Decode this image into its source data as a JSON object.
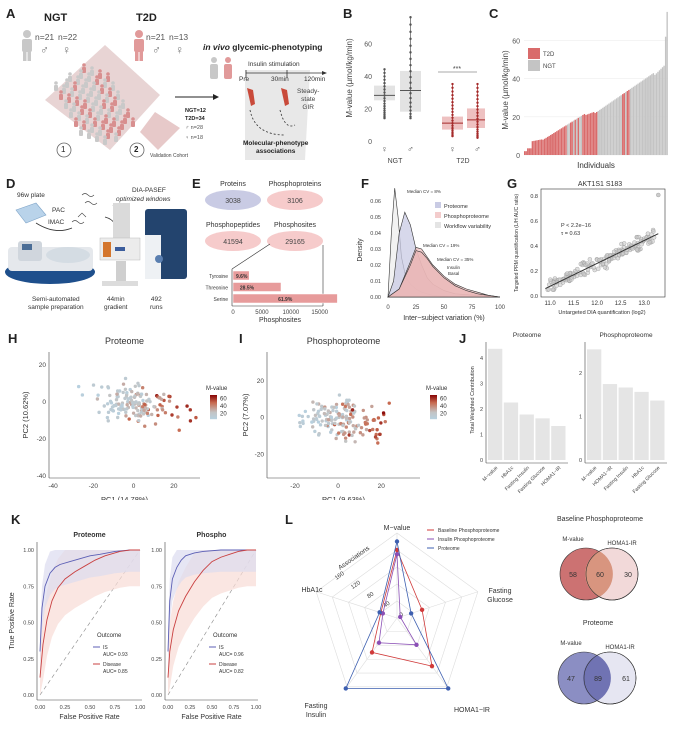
{
  "panels": {
    "A": {
      "letter": "A",
      "ngt": {
        "label": "NGT",
        "male_n": "n=21",
        "female_n": "n=22"
      },
      "t2d": {
        "label": "T2D",
        "male_n": "n=21",
        "female_n": "n=13"
      },
      "cohort1_label": "1",
      "cohort2_label": "2",
      "validation": {
        "ngt": "NGT=12",
        "t2d": "T2D=34",
        "male": "n=28",
        "female": "n=18",
        "label": "Validation Cohort"
      },
      "phenotyping_title_italic": "in vivo",
      "phenotyping_title": " glycemic-phenotyping",
      "insulin_stimulation": "Insulin stimulation",
      "timepoints": [
        "Pre",
        "30min",
        "120min"
      ],
      "steady_state": [
        "Steady-",
        "state",
        "GIR"
      ],
      "associations": [
        "Molecular-phenotype",
        "associations"
      ]
    },
    "B": {
      "letter": "B",
      "chart_data": {
        "type": "box",
        "ylabel": "M-value (µmol/kg/min)",
        "yticks": [
          0,
          20,
          40,
          60
        ],
        "ylim": [
          0,
          78
        ],
        "groups": [
          {
            "name": "NGT",
            "sex": "♀",
            "q1": 25,
            "median": 28,
            "q3": 34,
            "min": 14,
            "max": 44,
            "color": "#cccccc"
          },
          {
            "name": "NGT",
            "sex": "♂",
            "q1": 18,
            "median": 31,
            "q3": 43,
            "min": 14,
            "max": 76,
            "color": "#cccccc"
          },
          {
            "name": "T2D",
            "sex": "♀",
            "q1": 7,
            "median": 11,
            "q3": 15,
            "min": 3,
            "max": 35,
            "color": "#e7a7a7"
          },
          {
            "name": "T2D",
            "sex": "♂",
            "q1": 8,
            "median": 13,
            "q3": 20,
            "min": 2,
            "max": 35,
            "color": "#e7a7a7"
          }
        ],
        "group_labels": [
          "NGT",
          "T2D"
        ],
        "significance": "***"
      }
    },
    "C": {
      "letter": "C",
      "chart_data": {
        "type": "bar",
        "xlabel": "Individuals",
        "ylabel": "M-value (µmol/kg/min)",
        "yticks": [
          0,
          20,
          40,
          60
        ],
        "ylim": [
          0,
          76
        ],
        "legend": [
          {
            "name": "T2D",
            "color": "#d96b6b"
          },
          {
            "name": "NGT",
            "color": "#c4c4c4"
          }
        ],
        "note": "Individual M-values sorted ascending, colored by group"
      }
    },
    "D": {
      "letter": "D",
      "plate": "96w plate",
      "pac": "PAC",
      "imac": "IMAC",
      "dia_title": "DIA-PASEF",
      "dia_sub": "optimized windows",
      "semi": [
        "Semi-automated",
        "sample preparation"
      ],
      "gradient": [
        "44min",
        "gradient"
      ],
      "runs": [
        "492",
        "runs"
      ]
    },
    "E": {
      "letter": "E",
      "ellipses": [
        {
          "label": "Proteins",
          "value": "3038",
          "color": "#c9cbe4"
        },
        {
          "label": "Phosphoproteins",
          "value": "3106",
          "color": "#f6cbcb"
        },
        {
          "label": "Phosphopeptides",
          "value": "41594",
          "color": "#f6cbcb"
        },
        {
          "label": "Phosphosites",
          "value": "29165",
          "color": "#f6cbcb"
        }
      ],
      "chart_data": {
        "type": "bar",
        "orientation": "horizontal",
        "categories": [
          "Tyrosine",
          "Threonine",
          "Serine"
        ],
        "values": [
          2800,
          8300,
          18050
        ],
        "labels": [
          "9.6%",
          "28.5%",
          "61.9%"
        ],
        "xlabel": "Phosphosites",
        "xticks": [
          0,
          5000,
          10000,
          15000
        ],
        "xlim": [
          0,
          18500
        ]
      }
    },
    "F": {
      "letter": "F",
      "chart_data": {
        "type": "area",
        "xlabel": "Inter−subject variation (%)",
        "ylabel": "Density",
        "xticks": [
          0,
          25,
          50,
          75,
          100
        ],
        "yticks": [
          "0.00",
          "0.01",
          "0.02",
          "0.03",
          "0.04",
          "0.05",
          "0.06"
        ],
        "xlim": [
          0,
          100
        ],
        "ylim": [
          0,
          0.07
        ],
        "legend": [
          {
            "name": "Proteome",
            "color": "#c9cbe4"
          },
          {
            "name": "Phosphoproteome",
            "color": "#f3cccc"
          },
          {
            "name": "Workflow variability",
            "color": "#e4e4e4"
          }
        ],
        "annotations": [
          "Median CV = 8%",
          "Median CV = 19%",
          "Median CV = 35%",
          "Insulin",
          "Basal"
        ],
        "series": [
          {
            "name": "Workflow variability",
            "x": [
              0,
              3,
              6,
              9,
              12,
              16,
              20,
              25,
              30,
              40,
              60,
              100
            ],
            "y": [
              0,
              0.04,
              0.068,
              0.05,
              0.025,
              0.012,
              0.008,
              0.005,
              0.003,
              0.001,
              0,
              0
            ]
          },
          {
            "name": "Proteome",
            "x": [
              0,
              5,
              10,
              15,
              20,
              25,
              30,
              35,
              40,
              50,
              60,
              80,
              100
            ],
            "y": [
              0,
              0.01,
              0.04,
              0.053,
              0.045,
              0.03,
              0.02,
              0.012,
              0.008,
              0.004,
              0.002,
              0.001,
              0
            ]
          },
          {
            "name": "Phosphoproteome Insulin",
            "x": [
              0,
              10,
              20,
              25,
              30,
              35,
              40,
              50,
              60,
              70,
              80,
              90,
              100
            ],
            "y": [
              0,
              0.005,
              0.022,
              0.031,
              0.03,
              0.025,
              0.02,
              0.013,
              0.008,
              0.005,
              0.003,
              0.001,
              0
            ]
          },
          {
            "name": "Phosphoproteome Basal",
            "x": [
              0,
              10,
              20,
              25,
              30,
              35,
              40,
              50,
              60,
              70,
              80,
              90,
              100
            ],
            "y": [
              0,
              0.005,
              0.02,
              0.029,
              0.028,
              0.024,
              0.019,
              0.012,
              0.007,
              0.004,
              0.002,
              0.001,
              0
            ]
          }
        ]
      }
    },
    "G": {
      "letter": "G",
      "chart_data": {
        "type": "scatter",
        "title": "AKT1S1 S183",
        "xlabel": "Untargeted DIA quantification (log2)",
        "ylabel": "Targeted PRM quantification (L/H AUC ratio)",
        "xticks": [
          "11.0",
          "11.5",
          "12.0",
          "12.5",
          "13.0"
        ],
        "yticks": [
          "0.0",
          "0.2",
          "0.4",
          "0.6",
          "0.8"
        ],
        "xlim": [
          10.85,
          13.4
        ],
        "ylim": [
          0,
          0.85
        ],
        "stats": [
          "P < 2.2e−16",
          "τ = 0.63"
        ],
        "fit": {
          "x": [
            10.9,
            13.3
          ],
          "y": [
            0.06,
            0.5
          ]
        }
      }
    },
    "H": {
      "letter": "H",
      "chart_data": {
        "type": "scatter",
        "title": "Proteome",
        "xlabel": "PC1 (14.78%)",
        "ylabel": "PC2 (10.62%)",
        "xticks": [
          -40,
          -20,
          0,
          20
        ],
        "yticks": [
          -40,
          -20,
          0,
          20
        ],
        "xlim": [
          -42,
          33
        ],
        "ylim": [
          -41,
          27
        ],
        "colorbar": {
          "title": "M-value",
          "ticks": [
            20,
            40,
            60
          ]
        }
      }
    },
    "I": {
      "letter": "I",
      "chart_data": {
        "type": "scatter",
        "title": "Phosphoproteome",
        "xlabel": "PC1 (9.63%)",
        "ylabel": "PC2 (7.07%)",
        "xticks": [
          -20,
          0,
          20
        ],
        "yticks": [
          -20,
          0,
          20
        ],
        "xlim": [
          -33,
          38
        ],
        "ylim": [
          -33,
          36
        ],
        "colorbar": {
          "title": "M-value",
          "ticks": [
            20,
            40,
            60
          ]
        }
      }
    },
    "J": {
      "letter": "J",
      "chart_data": [
        {
          "type": "bar",
          "title": "Proteome",
          "ylabel": "Total Weighted Contribution",
          "categories": [
            "M−value",
            "HbA1c",
            "Fasting Insulin",
            "Fasting Glucose",
            "HOMA1−IR"
          ],
          "values": [
            4.35,
            2.25,
            1.78,
            1.63,
            1.33
          ],
          "yticks": [
            0,
            1,
            2,
            3,
            4
          ],
          "ylim": [
            0,
            4.5
          ]
        },
        {
          "type": "bar",
          "title": "Phosphoproteome",
          "categories": [
            "M−value",
            "HOMA1−IR",
            "Fasting Insulin",
            "HbA1c",
            "Fasting Glucose"
          ],
          "values": [
            2.55,
            1.75,
            1.67,
            1.57,
            1.37
          ],
          "yticks": [
            0,
            1,
            2
          ],
          "ylim": [
            0,
            2.65
          ]
        }
      ]
    },
    "K": {
      "letter": "K",
      "chart_data": [
        {
          "type": "line",
          "title": "Proteome",
          "xlabel": "False Positive Rate",
          "ylabel": "True Positive Rate",
          "ticks": [
            "0.00",
            "0.25",
            "0.50",
            "0.75",
            "1.00"
          ],
          "legend_title": "Outcome",
          "series": [
            {
              "name": "IS",
              "auc": "AUC= 0.93",
              "color": "#5c5fb5",
              "x": [
                0,
                0.02,
                0.05,
                0.1,
                0.15,
                0.2,
                0.3,
                0.4,
                0.5,
                0.6,
                0.75,
                0.9,
                1
              ],
              "y": [
                0.3,
                0.6,
                0.75,
                0.84,
                0.88,
                0.9,
                0.92,
                0.94,
                0.96,
                0.97,
                0.99,
                1,
                1
              ]
            },
            {
              "name": "Disease",
              "auc": "AUC= 0.85",
              "color": "#c94040",
              "x": [
                0,
                0.03,
                0.07,
                0.12,
                0.18,
                0.25,
                0.35,
                0.45,
                0.55,
                0.65,
                0.8,
                0.9,
                1
              ],
              "y": [
                0.12,
                0.35,
                0.52,
                0.65,
                0.74,
                0.8,
                0.85,
                0.89,
                0.93,
                0.96,
                0.99,
                1,
                1
              ]
            }
          ]
        },
        {
          "type": "line",
          "title": "Phospho",
          "xlabel": "False Positive Rate",
          "ticks": [
            "0.00",
            "0.25",
            "0.50",
            "0.75",
            "1.00"
          ],
          "legend_title": "Outcome",
          "series": [
            {
              "name": "IS",
              "auc": "AUC= 0.96",
              "color": "#5c5fb5",
              "x": [
                0,
                0.02,
                0.05,
                0.1,
                0.15,
                0.2,
                0.3,
                0.4,
                0.6,
                0.8,
                1
              ],
              "y": [
                0.3,
                0.65,
                0.8,
                0.88,
                0.93,
                0.96,
                0.98,
                0.99,
                1,
                1,
                1
              ]
            },
            {
              "name": "Disease",
              "auc": "AUC= 0.82",
              "color": "#c94040",
              "x": [
                0,
                0.02,
                0.06,
                0.12,
                0.2,
                0.3,
                0.4,
                0.5,
                0.6,
                0.7,
                0.8,
                0.9,
                1
              ],
              "y": [
                0.12,
                0.3,
                0.45,
                0.58,
                0.68,
                0.78,
                0.86,
                0.92,
                0.95,
                0.97,
                0.99,
                1,
                1
              ]
            }
          ]
        }
      ]
    },
    "L": {
      "letter": "L",
      "chart_data": {
        "type": "radar",
        "axes": [
          "M−value",
          "Fasting Glucose",
          "HOMA1−IR",
          "Fasting Insulin",
          "HbA1c"
        ],
        "axis_title": "Associations",
        "rticks": [
          0,
          40,
          80,
          120,
          160
        ],
        "rmax": 200,
        "series": [
          {
            "name": "Baseline Phosphoproteome",
            "color": "#d03a3a",
            "values": [
              160,
              62,
              140,
              100,
              40
            ]
          },
          {
            "name": "Insulin Phosphoproteome",
            "color": "#8a4fb5",
            "values": [
              150,
              8,
              78,
              72,
              35
            ]
          },
          {
            "name": "Proteome",
            "color": "#3d5fb0",
            "values": [
              180,
              35,
              205,
              205,
              43
            ]
          }
        ]
      },
      "venns": [
        {
          "title": "Baseline Phosphoproteome",
          "left_label": "M-value",
          "right_label": "HOMA1-IR",
          "left_only": "58",
          "both": "60",
          "right_only": "30",
          "left_color": "#c96a6a",
          "right_color": "#f2d9d9",
          "mid_color": "#d8957f"
        },
        {
          "title": "Proteome",
          "left_label": "M-value",
          "right_label": "HOMA1-IR",
          "left_only": "47",
          "both": "89",
          "right_only": "61",
          "left_color": "#8588c0",
          "right_color": "#e6e6f2",
          "mid_color": "#7073b3"
        }
      ]
    }
  }
}
